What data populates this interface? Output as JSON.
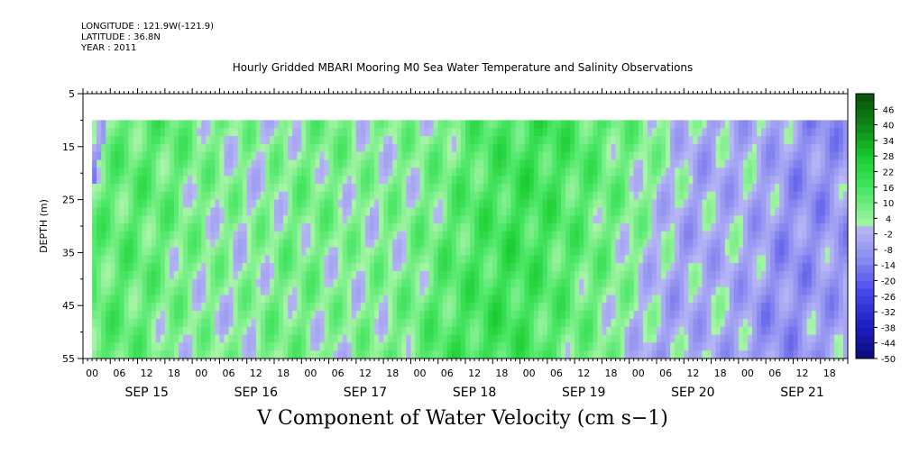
{
  "header": {
    "longitude": "LONGITUDE : 121.9W(-121.9)",
    "latitude": "LATITUDE : 36.8N",
    "year": "YEAR : 2011"
  },
  "chart_data": {
    "type": "heatmap",
    "title": "Hourly Gridded MBARI Mooring M0 Sea Water Temperature and Salinity Observations",
    "xlabel": "V Component of Water Velocity (cm s−1)",
    "ylabel": "DEPTH (m)",
    "ylim": [
      55,
      5
    ],
    "y_ticks": [
      5,
      15,
      25,
      35,
      45,
      55
    ],
    "data_depth_range": [
      10,
      55
    ],
    "x_hour_ticks": [
      "00",
      "06",
      "12",
      "18",
      "00",
      "06",
      "12",
      "18",
      "00",
      "06",
      "12",
      "18",
      "00",
      "06",
      "12",
      "18",
      "00",
      "06",
      "12",
      "18",
      "00",
      "06",
      "12",
      "18",
      "00",
      "06",
      "12",
      "18"
    ],
    "x_day_labels": [
      "SEP 15",
      "SEP 16",
      "SEP 17",
      "SEP 18",
      "SEP 19",
      "SEP 20",
      "SEP 21"
    ],
    "x_hour_range": [
      0,
      168
    ],
    "data_start_hour": 2,
    "colorbar_levels": [
      "46",
      "40",
      "34",
      "28",
      "22",
      "16",
      "10",
      "4",
      "-2",
      "-8",
      "-14",
      "-20",
      "-26",
      "-32",
      "-38",
      "-44",
      "-50"
    ],
    "colorbar_range": [
      -50,
      52
    ],
    "colorbar_step": 3,
    "colorbar_colors_high": [
      "#0a4d0a",
      "#0f8a18",
      "#1ccf33",
      "#4fe86a",
      "#a9f5a9"
    ],
    "colorbar_colors_low": [
      "#b8b8f5",
      "#8a8af0",
      "#4646e8",
      "#1f1fc2",
      "#0a0a7a"
    ],
    "column_profile": [
      {
        "day_hour": 0,
        "value": 10
      },
      {
        "day_hour": 12,
        "value": 12
      },
      {
        "day_hour": 24,
        "value": 6
      },
      {
        "day_hour": 36,
        "value": 3
      },
      {
        "day_hour": 48,
        "value": 8
      },
      {
        "day_hour": 60,
        "value": 4
      },
      {
        "day_hour": 72,
        "value": 6
      },
      {
        "day_hour": 84,
        "value": 14
      },
      {
        "day_hour": 96,
        "value": 18
      },
      {
        "day_hour": 108,
        "value": 12
      },
      {
        "day_hour": 120,
        "value": 5
      },
      {
        "day_hour": 132,
        "value": -4
      },
      {
        "day_hour": 144,
        "value": -2
      },
      {
        "day_hour": 156,
        "value": -10
      },
      {
        "day_hour": 168,
        "value": -6
      }
    ]
  }
}
